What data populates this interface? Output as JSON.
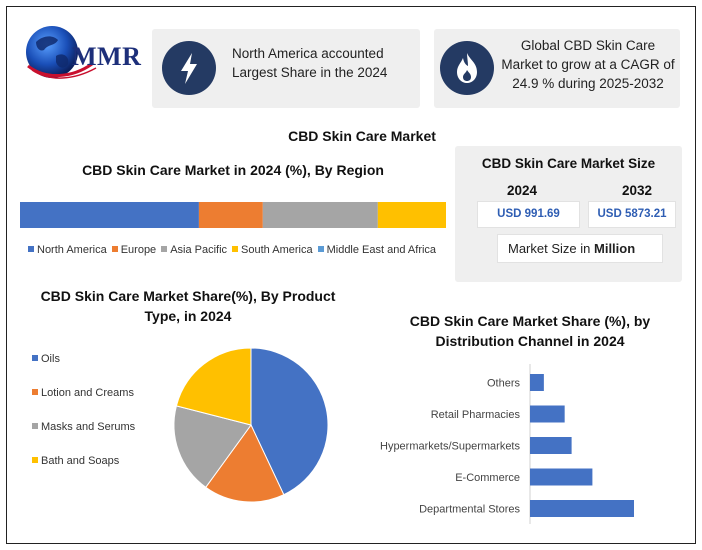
{
  "logo": {
    "text": "MMR"
  },
  "cards": [
    {
      "icon": "lightning-icon",
      "text": "North America accounted Largest Share in the 2024"
    },
    {
      "icon": "flame-icon",
      "text": "Global CBD Skin Care Market to grow at a CAGR of 24.9 % during 2025-2032"
    }
  ],
  "main_title": "CBD Skin Care Market",
  "market_size": {
    "title": "CBD Skin Care Market Size",
    "year_1": "2024",
    "year_2": "2032",
    "value_1": "USD 991.69",
    "value_2": "USD 5873.21",
    "unit_prefix": "Market Size in",
    "unit_bold": "Million"
  },
  "colors": {
    "blue": "#4472c4",
    "orange": "#ed7d31",
    "gray": "#a5a5a5",
    "yellow": "#ffc000",
    "light_blue": "#5b9bd5",
    "icon_bg": "#243a63"
  },
  "chart_data": [
    {
      "type": "bar",
      "orientation": "horizontal-stacked",
      "title": "CBD Skin Care Market in 2024 (%), By Region",
      "categories": [
        "North America",
        "Europe",
        "Asia Pacific",
        "South America",
        "Middle East and Africa"
      ],
      "values": [
        42,
        15,
        27,
        16,
        0
      ],
      "legend": "bottom"
    },
    {
      "type": "pie",
      "title": "CBD Skin Care Market Share(%), By Product Type, in 2024",
      "categories": [
        "Oils",
        "Lotion and Creams",
        "Masks and Serums",
        "Bath and Soaps"
      ],
      "values": [
        43,
        17,
        19,
        21
      ],
      "legend": "left"
    },
    {
      "type": "bar",
      "orientation": "horizontal",
      "title": "CBD Skin Care Market  Share (%), by Distribution Channel in 2024",
      "categories": [
        "Others",
        "Retail Pharmacies",
        "Hypermarkets/Supermarkets",
        "E-Commerce",
        "Departmental Stores"
      ],
      "values": [
        4,
        10,
        12,
        18,
        30
      ],
      "xlim": [
        0,
        30
      ],
      "grid": false
    }
  ]
}
